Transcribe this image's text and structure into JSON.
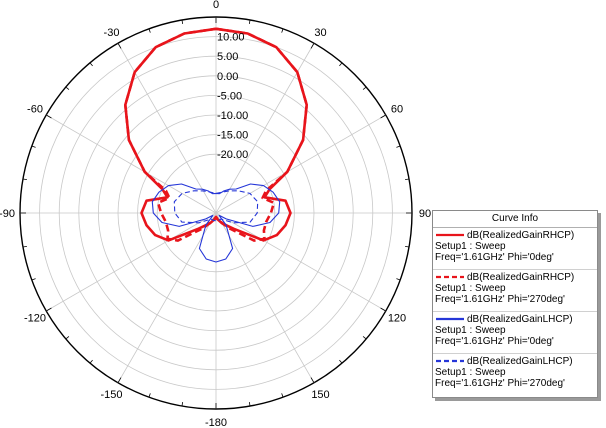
{
  "chart_data": {
    "type": "polar",
    "r_ticks": [
      10,
      5,
      0,
      -5,
      -10,
      -15,
      -20
    ],
    "r_tick_labels": [
      "10.00",
      "5.00",
      "0.00",
      "-5.00",
      "-10.00",
      "-15.00",
      "-20.00"
    ],
    "r_range": [
      -35,
      15
    ],
    "angle_ticks": [
      0,
      30,
      60,
      90,
      120,
      150,
      180,
      -150,
      -120,
      -90,
      -60,
      -30
    ],
    "angle_tick_labels": [
      "0",
      "30",
      "60",
      "90",
      "120",
      "150",
      "-180",
      "-150",
      "-120",
      "-90",
      "-60",
      "-30"
    ],
    "angle_unit": "deg",
    "grid": true,
    "legend": {
      "title": "Curve Info",
      "placement": "bottom-right"
    },
    "series": [
      {
        "name": "dB(RealizedGainRHCP)",
        "setup": "Setup1 : Sweep",
        "params": "Freq='1.61GHz' Phi='0deg'",
        "color": "#e8141b",
        "style": "solid",
        "points": [
          [
            0,
            12
          ],
          [
            10,
            11.5
          ],
          [
            20,
            10
          ],
          [
            30,
            6.5
          ],
          [
            40,
            1
          ],
          [
            50,
            -6
          ],
          [
            60,
            -14
          ],
          [
            66,
            -20
          ],
          [
            72,
            -22
          ],
          [
            80,
            -17
          ],
          [
            90,
            -16
          ],
          [
            100,
            -17
          ],
          [
            110,
            -18.5
          ],
          [
            120,
            -21
          ],
          [
            132,
            -29
          ],
          [
            150,
            -32
          ],
          [
            170,
            -33.5
          ],
          [
            180,
            -34
          ],
          [
            -170,
            -33.5
          ],
          [
            -150,
            -32
          ],
          [
            -132,
            -29
          ],
          [
            -120,
            -21
          ],
          [
            -110,
            -18.5
          ],
          [
            -100,
            -17
          ],
          [
            -90,
            -16
          ],
          [
            -80,
            -17
          ],
          [
            -72,
            -22
          ],
          [
            -66,
            -20
          ],
          [
            -60,
            -14
          ],
          [
            -50,
            -6
          ],
          [
            -40,
            1
          ],
          [
            -30,
            6.5
          ],
          [
            -20,
            10
          ],
          [
            -10,
            11.5
          ],
          [
            0,
            12
          ]
        ]
      },
      {
        "name": "dB(RealizedGainRHCP)",
        "setup": "Setup1 : Sweep",
        "params": "Freq='1.61GHz' Phi='270deg'",
        "color": "#e8141b",
        "style": "dashed",
        "points": [
          [
            0,
            12
          ],
          [
            10,
            11.5
          ],
          [
            20,
            10
          ],
          [
            30,
            6.5
          ],
          [
            40,
            1
          ],
          [
            50,
            -6
          ],
          [
            60,
            -14
          ],
          [
            66,
            -21
          ],
          [
            72,
            -22.5
          ],
          [
            80,
            -20
          ],
          [
            90,
            -21
          ],
          [
            100,
            -22
          ],
          [
            110,
            -22
          ],
          [
            118,
            -21
          ],
          [
            126,
            -23
          ],
          [
            140,
            -30
          ],
          [
            160,
            -33
          ],
          [
            180,
            -34
          ],
          [
            -160,
            -33
          ],
          [
            -140,
            -30
          ],
          [
            -126,
            -23
          ],
          [
            -118,
            -21
          ],
          [
            -110,
            -22
          ],
          [
            -100,
            -22
          ],
          [
            -90,
            -21
          ],
          [
            -80,
            -20
          ],
          [
            -72,
            -22.5
          ],
          [
            -66,
            -21
          ],
          [
            -60,
            -14
          ],
          [
            -50,
            -6
          ],
          [
            -40,
            1
          ],
          [
            -30,
            6.5
          ],
          [
            -20,
            10
          ],
          [
            -10,
            11.5
          ],
          [
            0,
            12
          ]
        ]
      },
      {
        "name": "dB(RealizedGainLHCP)",
        "setup": "Setup1 : Sweep",
        "params": "Freq='1.61GHz' Phi='0deg'",
        "color": "#2536d8",
        "style": "solid",
        "points": [
          [
            0,
            -30
          ],
          [
            10,
            -30
          ],
          [
            20,
            -29
          ],
          [
            30,
            -28
          ],
          [
            40,
            -27
          ],
          [
            50,
            -23.5
          ],
          [
            60,
            -21
          ],
          [
            70,
            -19.5
          ],
          [
            80,
            -18.5
          ],
          [
            90,
            -19
          ],
          [
            100,
            -21
          ],
          [
            110,
            -25
          ],
          [
            120,
            -32
          ],
          [
            128,
            -34
          ],
          [
            140,
            -31
          ],
          [
            155,
            -25
          ],
          [
            168,
            -23
          ],
          [
            180,
            -22.5
          ],
          [
            -168,
            -23
          ],
          [
            -155,
            -25
          ],
          [
            -140,
            -31
          ],
          [
            -128,
            -34
          ],
          [
            -120,
            -32
          ],
          [
            -110,
            -25
          ],
          [
            -100,
            -21
          ],
          [
            -90,
            -19
          ],
          [
            -80,
            -18.5
          ],
          [
            -70,
            -19.5
          ],
          [
            -60,
            -21
          ],
          [
            -50,
            -23.5
          ],
          [
            -40,
            -27
          ],
          [
            -30,
            -28
          ],
          [
            -20,
            -29
          ],
          [
            -10,
            -30
          ],
          [
            0,
            -30
          ]
        ]
      },
      {
        "name": "dB(RealizedGainLHCP)",
        "setup": "Setup1 : Sweep",
        "params": "Freq='1.61GHz' Phi='270deg'",
        "color": "#2536d8",
        "style": "dashed",
        "points": [
          [
            0,
            -30
          ],
          [
            15,
            -29.5
          ],
          [
            30,
            -28.5
          ],
          [
            45,
            -27
          ],
          [
            60,
            -25
          ],
          [
            75,
            -24
          ],
          [
            90,
            -24.5
          ],
          [
            105,
            -26
          ],
          [
            120,
            -30
          ],
          [
            140,
            -33
          ],
          [
            160,
            -33
          ],
          [
            180,
            -33
          ],
          [
            -160,
            -33
          ],
          [
            -140,
            -33
          ],
          [
            -120,
            -30
          ],
          [
            -105,
            -26
          ],
          [
            -90,
            -24.5
          ],
          [
            -75,
            -24
          ],
          [
            -60,
            -25
          ],
          [
            -45,
            -27
          ],
          [
            -30,
            -28.5
          ],
          [
            -15,
            -29.5
          ],
          [
            0,
            -30
          ]
        ]
      }
    ]
  }
}
